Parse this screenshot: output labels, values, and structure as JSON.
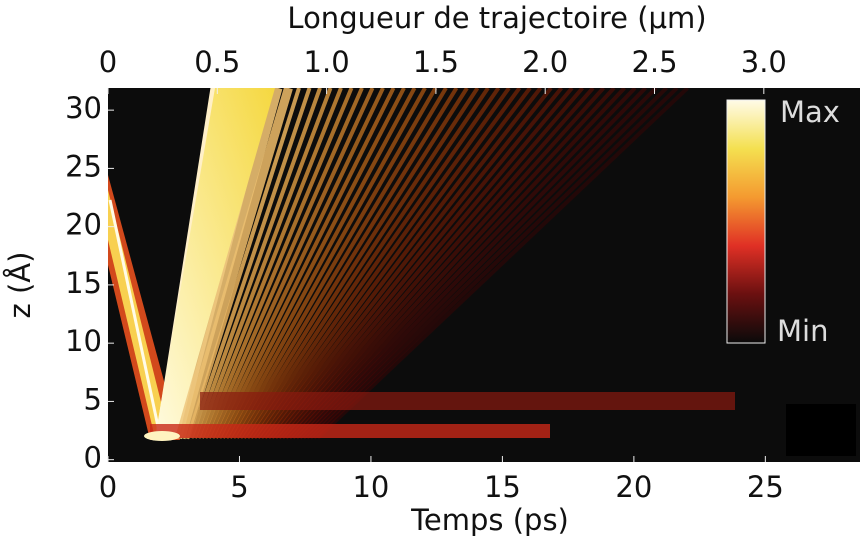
{
  "chart_data": {
    "type": "heatmap",
    "x_label": "Temps (ps)",
    "x2_label": "Longueur de trajectoire (μm)",
    "y_label": "z (Å)",
    "xlim": [
      0,
      28.6
    ],
    "xticks": [
      0,
      5,
      10,
      15,
      20,
      25
    ],
    "x2lim": [
      0,
      3.44
    ],
    "x2ticks": [
      0,
      0.5,
      {
        "value": 1,
        "label": "1.0"
      },
      1.5,
      {
        "value": 2,
        "label": "2.0"
      },
      2.5,
      {
        "value": 3,
        "label": "3.0"
      }
    ],
    "ylim": [
      -0.2,
      31.9
    ],
    "yticks": [
      0,
      5,
      10,
      15,
      20,
      25,
      30
    ],
    "colorbar": {
      "max_label": "Max",
      "min_label": "Min"
    }
  }
}
